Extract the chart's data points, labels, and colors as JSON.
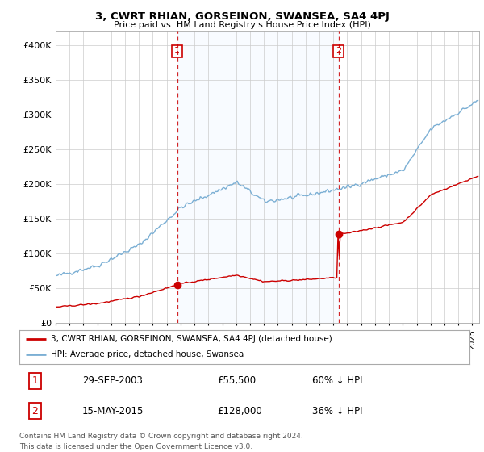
{
  "title": "3, CWRT RHIAN, GORSEINON, SWANSEA, SA4 4PJ",
  "subtitle": "Price paid vs. HM Land Registry's House Price Index (HPI)",
  "ylim": [
    0,
    420000
  ],
  "yticks": [
    0,
    50000,
    100000,
    150000,
    200000,
    250000,
    300000,
    350000,
    400000
  ],
  "ytick_labels": [
    "£0",
    "£50K",
    "£100K",
    "£150K",
    "£200K",
    "£250K",
    "£300K",
    "£350K",
    "£400K"
  ],
  "sale1_x": 2003.75,
  "sale1_price": 55500,
  "sale2_x": 2015.37,
  "sale2_price": 128000,
  "hpi_color": "#7bafd4",
  "price_color": "#cc0000",
  "vline_color": "#cc0000",
  "shade_color": "#ddeeff",
  "legend_label_price": "3, CWRT RHIAN, GORSEINON, SWANSEA, SA4 4PJ (detached house)",
  "legend_label_hpi": "HPI: Average price, detached house, Swansea",
  "footer1": "Contains HM Land Registry data © Crown copyright and database right 2024.",
  "footer2": "This data is licensed under the Open Government Licence v3.0.",
  "table_row1": [
    "1",
    "29-SEP-2003",
    "£55,500",
    "60% ↓ HPI"
  ],
  "table_row2": [
    "2",
    "15-MAY-2015",
    "£128,000",
    "36% ↓ HPI"
  ],
  "background_color": "#ffffff",
  "grid_color": "#cccccc"
}
